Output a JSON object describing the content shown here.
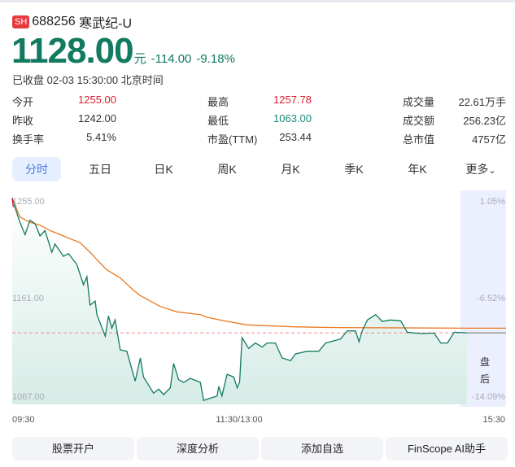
{
  "header": {
    "exchange": "SH",
    "code": "688256",
    "name": "寒武纪-U",
    "price": "1128.00",
    "unit": "元",
    "change": "-114.00",
    "change_pct": "-9.18%",
    "status": "已收盘 02-03 15:30:00 北京时间"
  },
  "stats": [
    {
      "label": "今开",
      "value": "1255.00",
      "color": "red"
    },
    {
      "label": "昨收",
      "value": "1242.00",
      "color": "dark"
    },
    {
      "label": "换手率",
      "value": "5.41%",
      "color": "dark"
    },
    {
      "label": "最高",
      "value": "1257.78",
      "color": "red"
    },
    {
      "label": "最低",
      "value": "1063.00",
      "color": "green"
    },
    {
      "label": "市盈(TTM)",
      "value": "253.44",
      "color": "dark"
    },
    {
      "label": "成交量",
      "value": "22.61万手",
      "color": "dark"
    },
    {
      "label": "成交额",
      "value": "256.23亿",
      "color": "dark"
    },
    {
      "label": "总市值",
      "value": "4757亿",
      "color": "dark"
    }
  ],
  "tabs": [
    "分时",
    "五日",
    "日K",
    "周K",
    "月K",
    "季K",
    "年K",
    "更多"
  ],
  "active_tab": "分时",
  "chart": {
    "y_ticks": [
      "1255.00",
      "1161.00",
      "1067.00"
    ],
    "pct_ticks": [
      "1.05%",
      "-6.52%",
      "-14.09%"
    ],
    "x_ticks": [
      "09:30",
      "11:30/13:00",
      "15:30"
    ],
    "after_hours_label": [
      "盘",
      "后"
    ],
    "colors": {
      "price": "#137a62",
      "avg": "#ea7a22",
      "ref": "#f08a8a",
      "after_hours": "#eceffd"
    }
  },
  "chart_data": {
    "type": "line",
    "ylim": [
      1067,
      1255
    ],
    "x_unit": "minutes since 09:30 (trading time)",
    "reference_price": 1128,
    "series": [
      {
        "x": [
          0,
          1.5,
          4.1,
          6.8,
          9.4,
          12.1,
          14.7,
          17.3,
          20.9,
          22.6,
          27,
          29.7,
          34.1,
          37.6,
          39.4,
          41.1,
          43.8,
          44.7,
          49.1,
          50.8,
          52.6,
          54.3,
          57,
          60.5,
          64.9,
          67.6,
          69.3,
          74.6,
          77.3,
          79.9,
          83.4,
          85.2,
          87.8,
          90.5,
          94,
          99.3,
          101,
          108.1,
          109,
          110.7,
          113.4,
          116.9,
          118.7,
          120,
          121.3,
          124.8,
          128.3,
          131.9,
          134.5,
          138.9,
          142.4,
          146.9,
          149.5,
          155.7,
          161.8,
          165.4,
          173.3,
          176.8,
          181.2,
          183,
          184.7,
          187.4,
          191.8,
          195.3,
          199.7,
          205,
          208.5,
          215.6,
          222.6,
          226.2,
          229.7,
          233.2,
          240
        ],
        "y": [
          1257.8,
          1248.7,
          1234.4,
          1222.6,
          1236.4,
          1233,
          1221.3,
          1226.5,
          1205.6,
          1213.5,
          1201.7,
          1204.3,
          1193.9,
          1174.3,
          1182.1,
          1154.7,
          1158.6,
          1145.6,
          1124.7,
          1144.3,
          1132.5,
          1140.4,
          1111.6,
          1110.3,
          1081.6,
          1103.8,
          1085.5,
          1069.9,
          1073.8,
          1068.6,
          1075.1,
          1098.6,
          1082.9,
          1080.3,
          1084.2,
          1080.3,
          1063,
          1067.2,
          1076.4,
          1067.2,
          1088.1,
          1085.5,
          1075.1,
          1080.3,
          1123.4,
          1113,
          1118.2,
          1114.3,
          1118.2,
          1118.2,
          1103.8,
          1101.2,
          1107.7,
          1110.3,
          1110.3,
          1118.2,
          1122.1,
          1129.9,
          1129.9,
          1119.5,
          1129.9,
          1140.4,
          1145.6,
          1139.1,
          1140.4,
          1139.6,
          1128.6,
          1127.3,
          1127.8,
          1118.2,
          1118.2,
          1128.6,
          1128
        ]
      },
      {
        "x": [
          0,
          4.1,
          9.4,
          14.7,
          20,
          27,
          35.8,
          41.1,
          46.4,
          49.9,
          57,
          64,
          67.6,
          78.1,
          87,
          99.3,
          102.8,
          113.4,
          123.9,
          148.6,
          169.8,
          240
        ],
        "y": [
          1257.8,
          1239.6,
          1234.4,
          1231.7,
          1226.5,
          1221.3,
          1214.8,
          1205.6,
          1195.2,
          1188.7,
          1180.8,
          1169.1,
          1163.9,
          1153.4,
          1148.2,
          1145.6,
          1143,
          1139.1,
          1135.7,
          1133.8,
          1133.1,
          1132.5
        ]
      }
    ]
  },
  "actions": [
    "股票开户",
    "深度分析",
    "添加自选",
    "FinScope AI助手"
  ]
}
